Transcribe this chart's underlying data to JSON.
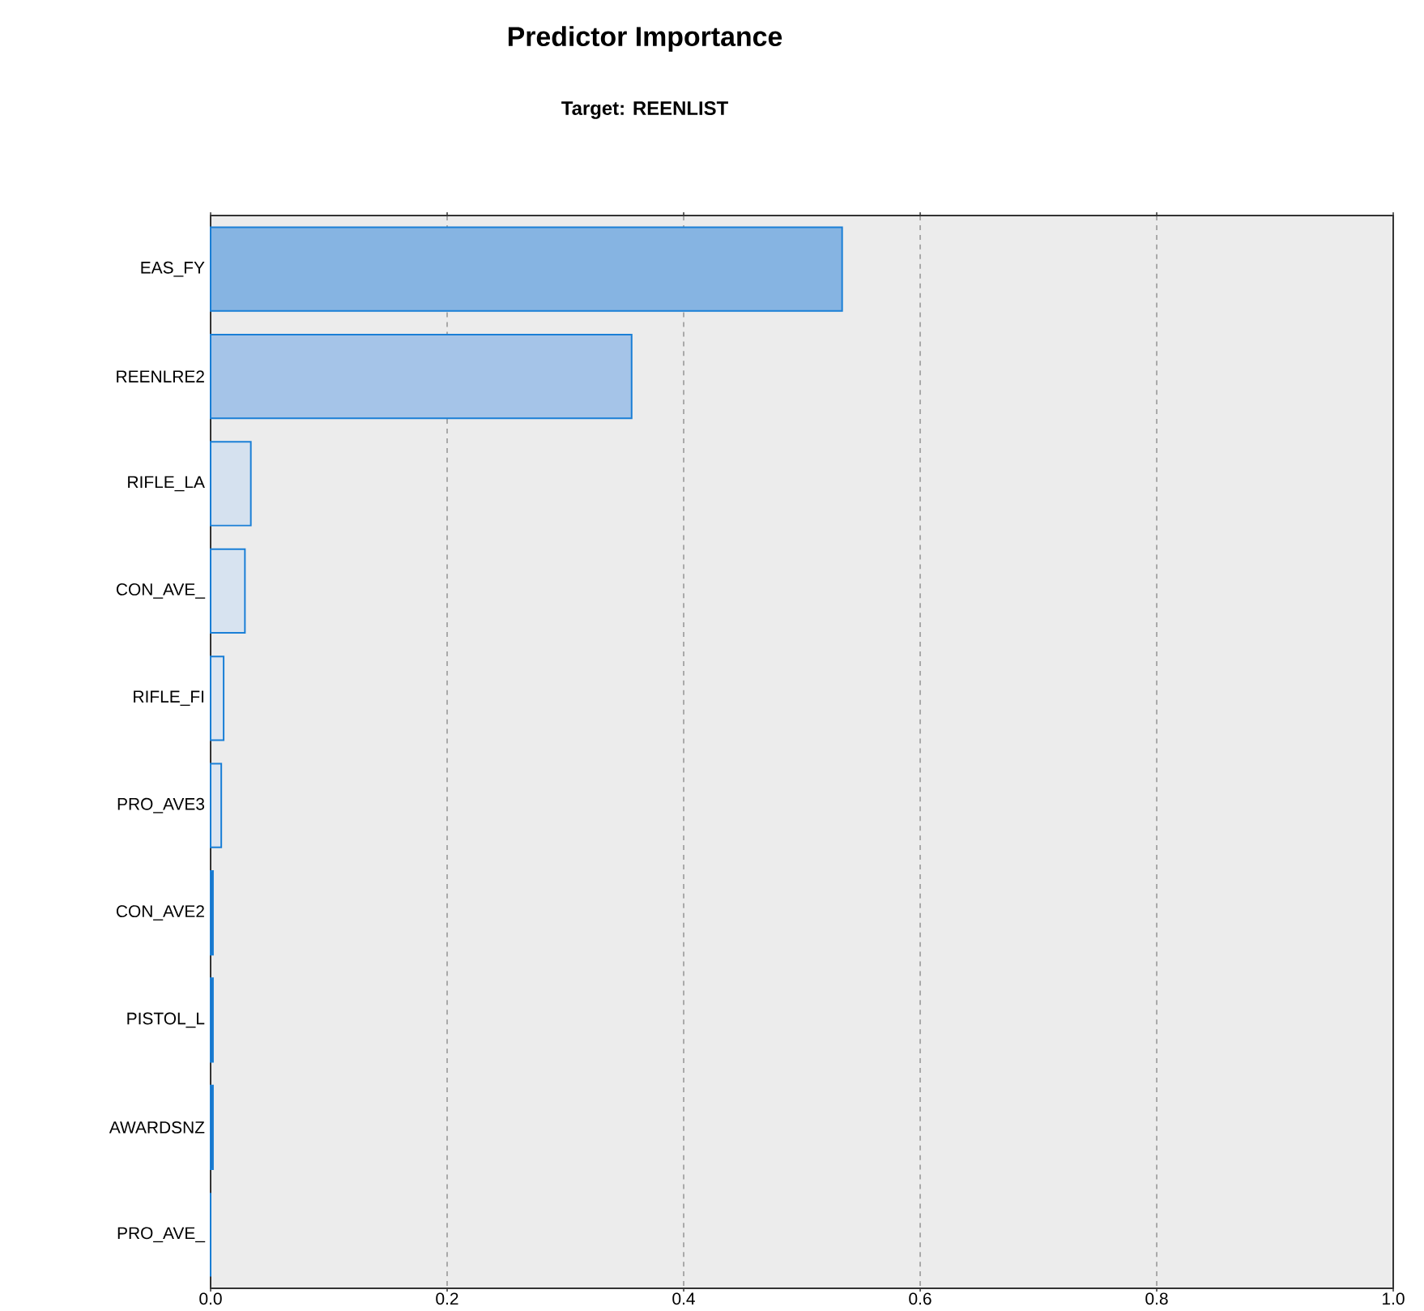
{
  "chart_data": {
    "type": "bar",
    "orientation": "horizontal",
    "title": "Predictor Importance",
    "subtitle": "Target: REENLIST",
    "categories": [
      "EAS_FY",
      "REENLRE2",
      "RIFLE_LA",
      "CON_AVE_",
      "RIFLE_FI",
      "PRO_AVE3",
      "CON_AVE2",
      "PISTOL_L",
      "AWARDSNZ",
      "PRO_AVE_"
    ],
    "values": [
      0.534,
      0.356,
      0.034,
      0.029,
      0.011,
      0.009,
      0.002,
      0.002,
      0.002,
      0
    ],
    "colors": [
      "#86b4e2",
      "#a5c4e8",
      "#d5e1ef",
      "#d7e3f0",
      "#dde6f1",
      "#dde6f1",
      "#1a6fc0",
      "#1a6fc0",
      "#1a6fc0",
      "#1a6fc0"
    ],
    "xlim": [
      0,
      1
    ],
    "xticks": [
      {
        "value": 0,
        "label": "0.0"
      },
      {
        "value": 0.2,
        "label": "0.2"
      },
      {
        "value": 0.4,
        "label": "0.4"
      },
      {
        "value": 0.6,
        "label": "0.6"
      },
      {
        "value": 0.8,
        "label": "0.8"
      },
      {
        "value": 1,
        "label": "1.0"
      }
    ],
    "grid": "x"
  }
}
